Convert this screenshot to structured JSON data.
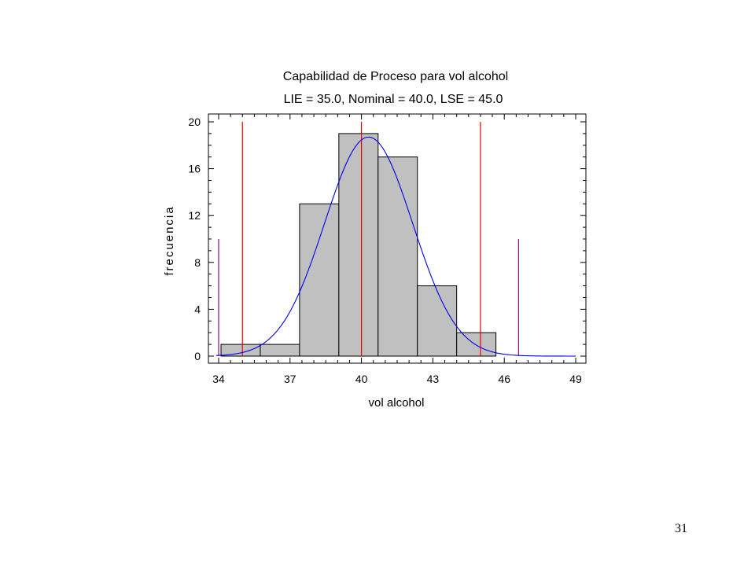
{
  "chart_data": {
    "type": "bar",
    "title": "Capabilidad de Proceso para  vol alcohol",
    "subtitle": "LIE = 35.0, Nominal = 40.0, LSE = 45.0",
    "xlabel": "vol alcohol",
    "ylabel": "frecuencia",
    "xlim": [
      33.9,
      49.0
    ],
    "ylim": [
      0,
      20
    ],
    "xticks": [
      34,
      37,
      40,
      43,
      46,
      49
    ],
    "yticks": [
      0,
      4,
      8,
      12,
      16,
      20
    ],
    "bins": [
      {
        "from": 34.1,
        "to": 35.75,
        "count": 1
      },
      {
        "from": 35.75,
        "to": 37.4,
        "count": 1
      },
      {
        "from": 37.4,
        "to": 39.05,
        "count": 13
      },
      {
        "from": 39.05,
        "to": 40.7,
        "count": 19
      },
      {
        "from": 40.7,
        "to": 42.35,
        "count": 17
      },
      {
        "from": 42.35,
        "to": 44.0,
        "count": 6
      },
      {
        "from": 44.0,
        "to": 45.65,
        "count": 2
      }
    ],
    "spec_lines": [
      {
        "label": "LIE",
        "x": 35.0,
        "color": "#ee0000"
      },
      {
        "label": "Nominal",
        "x": 40.0,
        "color": "#ee0000"
      },
      {
        "label": "LSE",
        "x": 45.0,
        "color": "#ee0000"
      }
    ],
    "limit_lines": [
      {
        "x": 34.0,
        "top": 10,
        "color": "#8b0a8b"
      },
      {
        "x": 46.6,
        "top": 10,
        "color": "#8b0a8b"
      }
    ],
    "fit_curve": {
      "type": "normal",
      "mean": 40.3,
      "sd": 1.85,
      "peak": 18.7,
      "color": "#0000ee"
    },
    "bar_fill": "#c0c0c0",
    "bar_stroke": "#000000",
    "grid": false
  },
  "page": {
    "number": "31"
  }
}
